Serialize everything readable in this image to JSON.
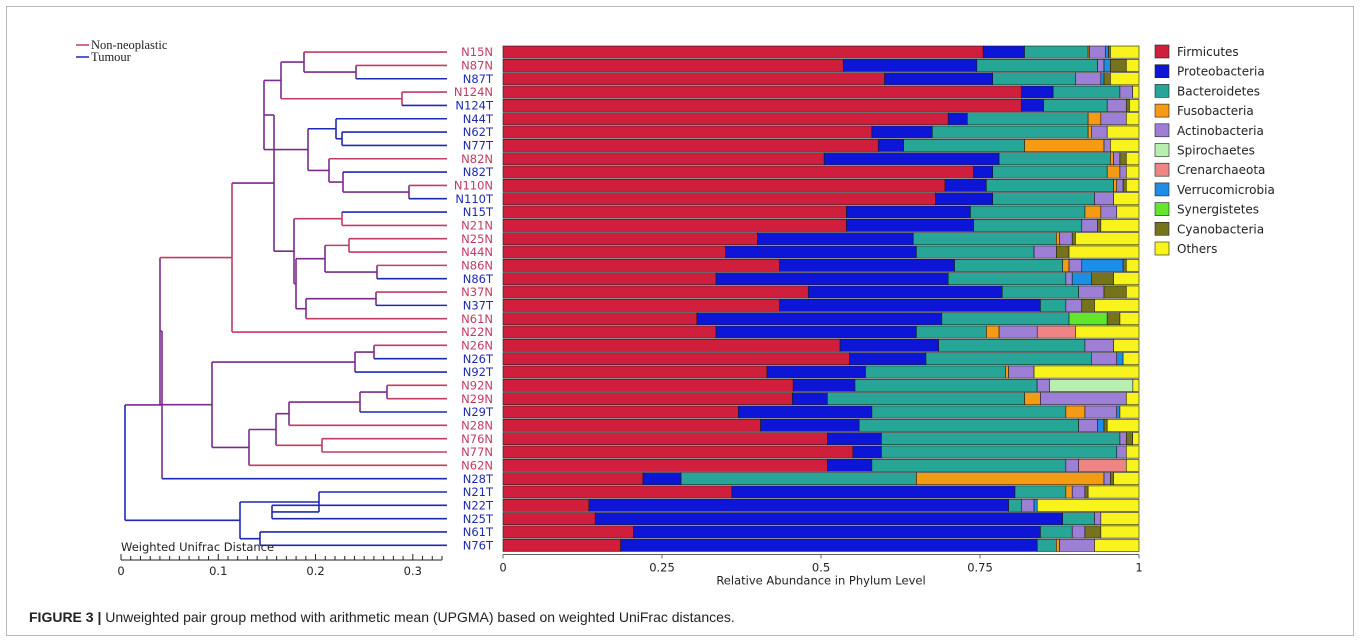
{
  "caption": {
    "label": "FIGURE 3 |",
    "text": " Unweighted pair group method with arithmetic mean (UPGMA) based on weighted UniFrac distances."
  },
  "tree_legend": [
    {
      "label": "Non-neoplastic",
      "color": "#c23b62"
    },
    {
      "label": "Tumour",
      "color": "#1f2ab2"
    }
  ],
  "tree_scale": {
    "title": "Weighted Unifrac Distance",
    "ticks": [
      "0",
      "0.1",
      "0.2",
      "0.3"
    ],
    "tick_values": [
      0,
      0.1,
      0.2,
      0.3
    ],
    "max": 0.33
  },
  "colors": {
    "Firmicutes": "#d01f3c",
    "Proteobacteria": "#0d16d6",
    "Bacteroidetes": "#27a596",
    "Fusobacteria": "#f59a13",
    "Actinobacteria": "#9d7fd6",
    "Spirochaetes": "#b8efb0",
    "Crenarchaeota": "#ee8585",
    "Verrucomicrobia": "#1d8ee6",
    "Synergistetes": "#62e62b",
    "Cyanobacteria": "#75731b",
    "Others": "#f8f31c",
    "non_neoplastic_label": "#c23b62",
    "tumour_label": "#1f2ab2",
    "branch_mixed": "#7a2b8c"
  },
  "chart_data": {
    "type": "bar",
    "orientation": "horizontal",
    "stacked": true,
    "xlabel": "Relative Abundance in Phylum Level",
    "xlim": [
      0,
      1
    ],
    "xticks": [
      "0",
      "0.25",
      "0.5",
      "0.75",
      "1"
    ],
    "xtick_values": [
      0,
      0.25,
      0.5,
      0.75,
      1
    ],
    "legend_position": "right",
    "series_names": [
      "Firmicutes",
      "Proteobacteria",
      "Bacteroidetes",
      "Fusobacteria",
      "Actinobacteria",
      "Spirochaetes",
      "Crenarchaeota",
      "Verrucomicrobia",
      "Synergistetes",
      "Cyanobacteria",
      "Others"
    ],
    "categories": [
      "N15N",
      "N87N",
      "N87T",
      "N124N",
      "N124T",
      "N44T",
      "N62T",
      "N77T",
      "N82N",
      "N82T",
      "N110N",
      "N110T",
      "N15T",
      "N21N",
      "N25N",
      "N44N",
      "N86N",
      "N86T",
      "N37N",
      "N37T",
      "N61N",
      "N22N",
      "N26N",
      "N26T",
      "N92T",
      "N92N",
      "N29N",
      "N29T",
      "N28N",
      "N76N",
      "N77N",
      "N62N",
      "N28T",
      "N21T",
      "N22T",
      "N25T",
      "N61T",
      "N76T"
    ],
    "values": [
      [
        0.755,
        0.065,
        0.1,
        0.002,
        0.025,
        0.0,
        0.0,
        0.005,
        0.0,
        0.003,
        0.045
      ],
      [
        0.535,
        0.21,
        0.19,
        0.0,
        0.01,
        0.0,
        0.0,
        0.01,
        0.0,
        0.025,
        0.02
      ],
      [
        0.6,
        0.17,
        0.13,
        0.0,
        0.04,
        0.0,
        0.0,
        0.005,
        0.0,
        0.01,
        0.045
      ],
      [
        0.815,
        0.05,
        0.105,
        0.0,
        0.02,
        0.0,
        0.0,
        0.0,
        0.0,
        0.0,
        0.01
      ],
      [
        0.815,
        0.035,
        0.1,
        0.0,
        0.03,
        0.0,
        0.0,
        0.0,
        0.0,
        0.005,
        0.015
      ],
      [
        0.7,
        0.03,
        0.19,
        0.02,
        0.04,
        0.0,
        0.0,
        0.0,
        0.0,
        0.0,
        0.02
      ],
      [
        0.58,
        0.095,
        0.245,
        0.005,
        0.025,
        0.0,
        0.0,
        0.0,
        0.0,
        0.0,
        0.05
      ],
      [
        0.59,
        0.04,
        0.19,
        0.125,
        0.01,
        0.0,
        0.0,
        0.0,
        0.0,
        0.0,
        0.045
      ],
      [
        0.505,
        0.275,
        0.175,
        0.005,
        0.01,
        0.0,
        0.0,
        0.0,
        0.0,
        0.01,
        0.02
      ],
      [
        0.74,
        0.03,
        0.18,
        0.02,
        0.01,
        0.0,
        0.0,
        0.0,
        0.0,
        0.0,
        0.02
      ],
      [
        0.695,
        0.065,
        0.2,
        0.005,
        0.01,
        0.0,
        0.0,
        0.0,
        0.0,
        0.005,
        0.02
      ],
      [
        0.68,
        0.09,
        0.16,
        0.0,
        0.03,
        0.0,
        0.0,
        0.0,
        0.0,
        0.0,
        0.04
      ],
      [
        0.54,
        0.195,
        0.18,
        0.025,
        0.025,
        0.0,
        0.0,
        0.0,
        0.0,
        0.0,
        0.035
      ],
      [
        0.54,
        0.2,
        0.17,
        0.0,
        0.025,
        0.0,
        0.0,
        0.0,
        0.0,
        0.005,
        0.06
      ],
      [
        0.4,
        0.245,
        0.225,
        0.005,
        0.02,
        0.0,
        0.0,
        0.0,
        0.0,
        0.005,
        0.1
      ],
      [
        0.35,
        0.3,
        0.185,
        0.0,
        0.035,
        0.0,
        0.0,
        0.0,
        0.0,
        0.02,
        0.11
      ],
      [
        0.435,
        0.275,
        0.17,
        0.01,
        0.02,
        0.0,
        0.0,
        0.065,
        0.0,
        0.005,
        0.02
      ],
      [
        0.335,
        0.365,
        0.185,
        0.0,
        0.01,
        0.0,
        0.0,
        0.03,
        0.0,
        0.035,
        0.04
      ],
      [
        0.48,
        0.305,
        0.12,
        0.0,
        0.04,
        0.0,
        0.0,
        0.0,
        0.0,
        0.035,
        0.02
      ],
      [
        0.435,
        0.41,
        0.04,
        0.0,
        0.025,
        0.0,
        0.0,
        0.0,
        0.0,
        0.02,
        0.07
      ],
      [
        0.305,
        0.385,
        0.2,
        0.0,
        0.0,
        0.0,
        0.0,
        0.0,
        0.06,
        0.02,
        0.03
      ],
      [
        0.335,
        0.315,
        0.11,
        0.02,
        0.06,
        0.0,
        0.06,
        0.0,
        0.0,
        0.0,
        0.1
      ],
      [
        0.53,
        0.155,
        0.23,
        0.0,
        0.045,
        0.0,
        0.0,
        0.0,
        0.0,
        0.0,
        0.04
      ],
      [
        0.545,
        0.12,
        0.26,
        0.0,
        0.04,
        0.0,
        0.0,
        0.01,
        0.0,
        0.0,
        0.025
      ],
      [
        0.415,
        0.155,
        0.22,
        0.005,
        0.04,
        0.0,
        0.0,
        0.0,
        0.0,
        0.0,
        0.165
      ],
      [
        0.47,
        0.1,
        0.295,
        0.0,
        0.02,
        0.135,
        0.0,
        0.0,
        0.0,
        0.0,
        0.01
      ],
      [
        0.455,
        0.055,
        0.31,
        0.025,
        0.135,
        0.0,
        0.0,
        0.0,
        0.0,
        0.0,
        0.02
      ],
      [
        0.37,
        0.21,
        0.305,
        0.03,
        0.05,
        0.0,
        0.0,
        0.005,
        0.0,
        0.0,
        0.03
      ],
      [
        0.405,
        0.155,
        0.345,
        0.0,
        0.03,
        0.0,
        0.0,
        0.01,
        0.0,
        0.005,
        0.05
      ],
      [
        0.51,
        0.085,
        0.375,
        0.0,
        0.01,
        0.0,
        0.0,
        0.0,
        0.0,
        0.01,
        0.01
      ],
      [
        0.55,
        0.045,
        0.37,
        0.0,
        0.015,
        0.0,
        0.0,
        0.0,
        0.0,
        0.0,
        0.02
      ],
      [
        0.51,
        0.07,
        0.305,
        0.0,
        0.02,
        0.0,
        0.075,
        0.0,
        0.0,
        0.0,
        0.02
      ],
      [
        0.22,
        0.06,
        0.37,
        0.295,
        0.01,
        0.0,
        0.0,
        0.0,
        0.0,
        0.005,
        0.04
      ],
      [
        0.36,
        0.445,
        0.08,
        0.01,
        0.02,
        0.0,
        0.0,
        0.0,
        0.0,
        0.005,
        0.08
      ],
      [
        0.135,
        0.66,
        0.02,
        0.0,
        0.02,
        0.0,
        0.0,
        0.005,
        0.0,
        0.0,
        0.16
      ],
      [
        0.145,
        0.735,
        0.05,
        0.0,
        0.01,
        0.0,
        0.0,
        0.0,
        0.0,
        0.0,
        0.06
      ],
      [
        0.205,
        0.64,
        0.05,
        0.0,
        0.02,
        0.0,
        0.0,
        0.0,
        0.0,
        0.025,
        0.06
      ],
      [
        0.185,
        0.655,
        0.03,
        0.005,
        0.055,
        0.0,
        0.0,
        0.0,
        0.0,
        0.0,
        0.07
      ]
    ],
    "sample_group": [
      "non",
      "non",
      "tum",
      "non",
      "tum",
      "tum",
      "tum",
      "tum",
      "non",
      "tum",
      "non",
      "tum",
      "tum",
      "non",
      "non",
      "non",
      "non",
      "tum",
      "non",
      "tum",
      "non",
      "non",
      "non",
      "tum",
      "tum",
      "non",
      "non",
      "tum",
      "non",
      "non",
      "non",
      "non",
      "tum",
      "tum",
      "tum",
      "tum",
      "tum",
      "tum"
    ]
  }
}
